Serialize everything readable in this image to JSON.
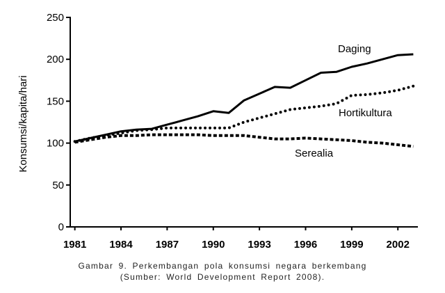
{
  "chart_data": {
    "type": "line",
    "ylabel": "Konsumsi/kapita/hari",
    "xlabel": "",
    "ylim": [
      0,
      250
    ],
    "xlim": [
      1980.7,
      2003.3
    ],
    "yticks": [
      0,
      50,
      100,
      150,
      200,
      250
    ],
    "xticks": [
      1981,
      1984,
      1987,
      1990,
      1993,
      1996,
      1999,
      2002
    ],
    "grid": false,
    "legend": "none",
    "series": [
      {
        "name": "Daging",
        "style": "solid",
        "x": [
          1981,
          1982,
          1983,
          1984,
          1985,
          1986,
          1987,
          1988,
          1989,
          1990,
          1991,
          1992,
          1993,
          1994,
          1995,
          1996,
          1997,
          1998,
          1999,
          2000,
          2001,
          2002,
          2003
        ],
        "values": [
          102,
          106,
          110,
          114,
          116,
          117,
          122,
          127,
          132,
          138,
          136,
          151,
          159,
          167,
          166,
          175,
          184,
          185,
          191,
          195,
          200,
          205,
          206
        ]
      },
      {
        "name": "Hortikultura",
        "style": "dotted",
        "x": [
          1981,
          1982,
          1983,
          1984,
          1985,
          1986,
          1987,
          1988,
          1989,
          1990,
          1991,
          1992,
          1993,
          1994,
          1995,
          1996,
          1997,
          1998,
          1999,
          2000,
          2001,
          2002,
          2003
        ],
        "values": [
          102,
          106,
          109,
          112,
          115,
          116,
          118,
          118,
          118,
          118,
          118,
          125,
          130,
          135,
          140,
          142,
          144,
          147,
          157,
          158,
          160,
          163,
          168
        ]
      },
      {
        "name": "Serealia",
        "style": "dashed",
        "x": [
          1981,
          1982,
          1983,
          1984,
          1985,
          1986,
          1987,
          1988,
          1989,
          1990,
          1991,
          1992,
          1993,
          1994,
          1995,
          1996,
          1997,
          1998,
          1999,
          2000,
          2001,
          2002,
          2003
        ],
        "values": [
          101,
          104,
          107,
          109,
          109,
          110,
          110,
          110,
          110,
          109,
          109,
          109,
          107,
          105,
          105,
          106,
          105,
          104,
          103,
          101,
          100,
          98,
          96
        ]
      }
    ]
  },
  "caption": {
    "line1": "Gambar 9. Perkembangan pola konsumsi negara berkembang",
    "line2": "(Sumber: World Development Report 2008)."
  }
}
